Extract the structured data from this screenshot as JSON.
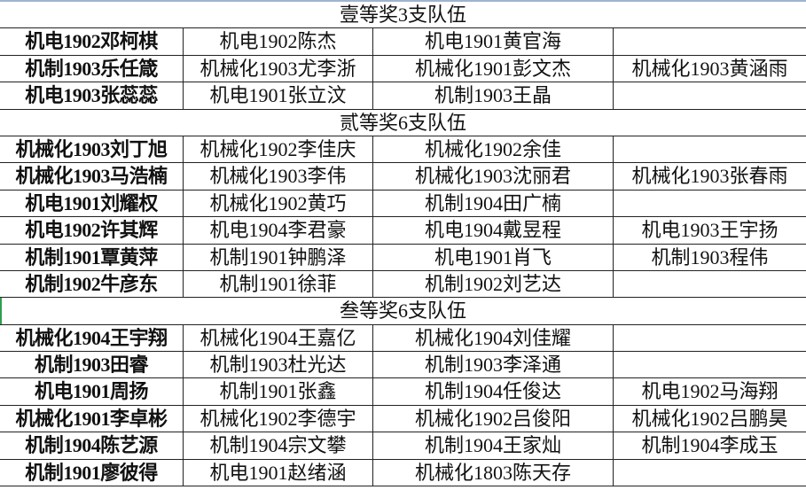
{
  "sections": [
    {
      "title": "壹等奖3支队伍",
      "rows": [
        [
          "机电1902邓柯棋",
          "机电1902陈杰",
          "机电1901黄官海",
          ""
        ],
        [
          "机制1903乐任箴",
          "机械化1903尤李浙",
          "机械化1901彭文杰",
          "机械化1903黄涵雨"
        ],
        [
          "机电1903张蕊蕊",
          "机电1901张立汶",
          "机制1903王晶",
          ""
        ]
      ]
    },
    {
      "title": "贰等奖6支队伍",
      "rows": [
        [
          "机械化1903刘丁旭",
          "机械化1902李佳庆",
          "机械化1902余佳",
          ""
        ],
        [
          "机械化1903马浩楠",
          "机械化1903李伟",
          "机械化1903沈丽君",
          "机械化1903张春雨"
        ],
        [
          "机电1901刘耀权",
          "机械化1902黄巧",
          "机制1904田广楠",
          ""
        ],
        [
          "机电1902许其辉",
          "机电1904李君豪",
          "机电1904戴昱程",
          "机电1903王宇扬"
        ],
        [
          "机制1901覃黄萍",
          "机制1901钟鹏泽",
          "机电1901肖飞",
          "机制1903程伟"
        ],
        [
          "机制1902牛彦东",
          "机制1901徐菲",
          "机制1902刘艺达",
          ""
        ]
      ]
    },
    {
      "title": "叁等奖6支队伍",
      "rows": [
        [
          "机械化1904王宇翔",
          "机械化1904王嘉亿",
          "机械化1904刘佳耀",
          ""
        ],
        [
          "机制1903田睿",
          "机制1903杜光达",
          "机制1903李泽通",
          ""
        ],
        [
          "机电1901周扬",
          "机制1901张鑫",
          "机制1904任俊达",
          "机电1902马海翔"
        ],
        [
          "机械化1901李卓彬",
          "机械化1902李德宇",
          "机械化1902吕俊阳",
          "机械化1902吕鹏昊"
        ],
        [
          "机制1904陈艺源",
          "机制1904宗文攀",
          "机制1904王家灿",
          "机制1904李成玉"
        ],
        [
          "机制1901廖彼得",
          "机电1901赵绪涵",
          "机械化1803陈天存",
          ""
        ]
      ]
    }
  ],
  "colors": {
    "grid": "#222222",
    "top_border": "#9fb4d0",
    "selection": "#2e9e4f"
  }
}
